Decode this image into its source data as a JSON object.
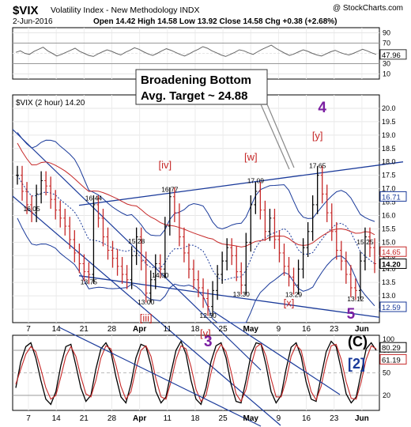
{
  "header": {
    "symbol": "$VIX",
    "name": "Volatility Index - New Methodology  INDX",
    "watermark": "@ StockCharts.com",
    "date": "2-Jun-2016",
    "quote": "Open 14.42  High 14.58  Low 13.92  Close 14.58  Chg +0.38 (+2.68%)"
  },
  "callout": {
    "line1": "Broadening Bottom",
    "line2": "Avg. Target ~ 24.88"
  },
  "rsi_panel": {
    "ticks": [
      "90",
      "70",
      "50",
      "30",
      "10"
    ],
    "last_value": "47.96",
    "values": [
      52,
      55,
      50,
      48,
      54,
      58,
      62,
      55,
      50,
      45,
      48,
      52,
      56,
      60,
      54,
      50,
      46,
      44,
      49,
      53,
      57,
      54,
      50,
      47,
      52,
      56,
      61,
      58,
      53,
      49,
      46,
      50,
      55,
      59,
      56,
      52,
      48,
      45,
      49,
      54,
      58,
      63,
      60,
      55,
      51,
      47,
      44,
      48,
      52,
      57,
      55,
      51,
      48,
      53,
      58,
      62,
      66,
      60,
      55,
      50,
      46,
      49,
      53,
      57,
      54,
      50,
      47,
      45,
      49,
      53,
      56,
      52,
      49,
      47,
      50,
      54,
      58,
      55,
      51,
      48
    ]
  },
  "price_panel": {
    "legend": "$VIX (2 hour) 14.20",
    "ylim": [
      12.0,
      20.5
    ],
    "ticks": [
      "20.0",
      "19.5",
      "19.0",
      "18.5",
      "18.0",
      "17.5",
      "17.0",
      "16.5",
      "16.0",
      "15.5",
      "15.0",
      "14.5",
      "14.0",
      "13.5",
      "13.0",
      "12.5"
    ],
    "tick_values": [
      20.0,
      19.5,
      19.0,
      18.5,
      18.0,
      17.5,
      17.0,
      16.5,
      16.0,
      15.5,
      15.0,
      14.5,
      14.0,
      13.5,
      13.0,
      12.5
    ],
    "last_badges": [
      {
        "text": "16.71",
        "value": 16.71,
        "color": "#1a3a9a"
      },
      {
        "text": "14.65",
        "value": 14.65,
        "color": "#c62828"
      },
      {
        "text": "14.20",
        "value": 14.2,
        "color": "#000000"
      },
      {
        "text": "12.59",
        "value": 12.59,
        "color": "#1a3a9a"
      }
    ],
    "price_labels": [
      {
        "text": "16.05",
        "i": 3,
        "v": 16.05
      },
      {
        "text": "16.44",
        "i": 16,
        "v": 16.44
      },
      {
        "text": "15.28",
        "i": 25,
        "v": 15.28
      },
      {
        "text": "16.77",
        "i": 32,
        "v": 16.77
      },
      {
        "text": "13.75",
        "i": 15,
        "v": 13.75
      },
      {
        "text": "13.00",
        "i": 27,
        "v": 13.0
      },
      {
        "text": "14.00",
        "i": 30,
        "v": 14.0
      },
      {
        "text": "12.50",
        "i": 40,
        "v": 12.5
      },
      {
        "text": "17.09",
        "i": 50,
        "v": 17.09
      },
      {
        "text": "13.30",
        "i": 47,
        "v": 13.3
      },
      {
        "text": "13.29",
        "i": 58,
        "v": 13.29
      },
      {
        "text": "17.65",
        "i": 63,
        "v": 17.65
      },
      {
        "text": "15.25",
        "i": 73,
        "v": 15.25
      },
      {
        "text": "13.12",
        "i": 71,
        "v": 13.12
      }
    ],
    "wave_labels": [
      {
        "text": "4",
        "color": "#7b1fa2",
        "size": 19,
        "i": 64,
        "v": 19.85
      },
      {
        "text": "[y]",
        "color": "#c62828",
        "size": 13,
        "i": 63,
        "v": 18.85
      },
      {
        "text": "[w]",
        "color": "#c62828",
        "size": 13,
        "i": 49,
        "v": 18.05
      },
      {
        "text": "[iv]",
        "color": "#c62828",
        "size": 13,
        "i": 31,
        "v": 17.75
      },
      {
        "text": "[x]",
        "color": "#c62828",
        "size": 13,
        "i": 57,
        "v": 12.6
      },
      {
        "text": "[iii]",
        "color": "#c62828",
        "size": 13,
        "i": 27,
        "v": 12.05
      },
      {
        "text": "5",
        "color": "#7b1fa2",
        "size": 19,
        "i": 70,
        "v": 12.15
      }
    ],
    "closes": [
      17.5,
      16.9,
      16.4,
      16.1,
      16.8,
      17.3,
      17.1,
      16.6,
      16.2,
      15.9,
      15.6,
      15.1,
      14.6,
      14.2,
      13.9,
      13.8,
      16.4,
      15.9,
      15.2,
      14.7,
      14.4,
      14.1,
      13.8,
      13.6,
      14.5,
      15.2,
      14.3,
      13.1,
      13.6,
      14.2,
      14.0,
      15.6,
      16.7,
      16.1,
      15.2,
      14.6,
      14.0,
      13.6,
      13.3,
      12.9,
      12.6,
      13.2,
      13.8,
      14.3,
      14.8,
      14.5,
      13.9,
      13.4,
      15.0,
      16.4,
      16.9,
      16.2,
      15.4,
      15.9,
      15.1,
      14.6,
      14.1,
      13.7,
      13.4,
      14.0,
      14.8,
      15.4,
      16.4,
      17.5,
      16.8,
      16.1,
      15.4,
      14.7,
      14.3,
      13.8,
      13.3,
      13.2,
      14.3,
      15.2,
      14.8,
      14.2
    ]
  },
  "wave_labels_lower": [
    {
      "text": "[v]",
      "color": "#c62828"
    },
    {
      "text": "3",
      "color": "#7b1fa2"
    },
    {
      "text": "(C)",
      "color": "#000000"
    },
    {
      "text": "[2]",
      "color": "#1a3a9a"
    }
  ],
  "x_axis": {
    "labels": [
      "7",
      "14",
      "21",
      "28",
      "Apr",
      "11",
      "18",
      "25",
      "May",
      "9",
      "16",
      "23",
      "Jun"
    ],
    "bold": [
      "Apr",
      "May",
      "Jun"
    ]
  },
  "stoch_panel": {
    "ticks": [
      "80",
      "20"
    ],
    "right_ticks": [
      "100",
      "50"
    ],
    "last_values": [
      "80.29",
      "61.19"
    ],
    "k": [
      30,
      65,
      85,
      90,
      70,
      40,
      15,
      8,
      25,
      60,
      85,
      88,
      60,
      30,
      12,
      20,
      55,
      82,
      90,
      78,
      45,
      18,
      10,
      35,
      70,
      88,
      85,
      60,
      25,
      10,
      18,
      50,
      80,
      92,
      75,
      40,
      15,
      8,
      30,
      65,
      86,
      90,
      70,
      35,
      12,
      10,
      40,
      75,
      90,
      88,
      60,
      25,
      10,
      20,
      55,
      84,
      90,
      72,
      38,
      15,
      12,
      45,
      78,
      92,
      85,
      55,
      22,
      10,
      18,
      50,
      82,
      90,
      80
    ],
    "d": [
      35,
      55,
      75,
      85,
      78,
      55,
      30,
      15,
      20,
      45,
      72,
      85,
      72,
      45,
      22,
      18,
      40,
      70,
      86,
      82,
      60,
      32,
      15,
      25,
      55,
      80,
      86,
      72,
      42,
      18,
      15,
      38,
      68,
      86,
      82,
      58,
      28,
      12,
      20,
      50,
      76,
      88,
      78,
      52,
      22,
      12,
      28,
      60,
      84,
      89,
      72,
      42,
      18,
      18,
      40,
      72,
      87,
      80,
      52,
      25,
      14,
      32,
      64,
      86,
      88,
      68,
      38,
      16,
      15,
      38,
      68,
      86,
      82
    ]
  }
}
